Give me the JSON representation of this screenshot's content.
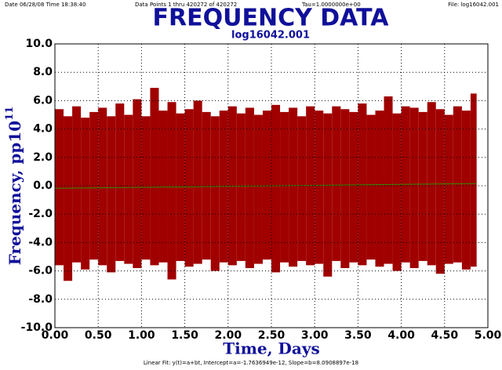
{
  "chart_data": {
    "type": "range",
    "header": {
      "date": "Date  06/28/08  Time  18:38:40",
      "points": "Data Points 1 thru 420272 of 420272",
      "tau": "Tau=1.0000000e+00",
      "file": "File: log16042.001"
    },
    "title": "FREQUENCY DATA",
    "subtitle": "log16042.001",
    "x_label": "Time, Days",
    "y_label": "Frequency, pp10",
    "y_label_exponent": "11",
    "footnote": "Linear Fit: y(t)=a+bt, Intercept=a=-1.7636949e-12, Slope=b=8.0908897e-18",
    "bins": [
      0.0,
      0.1,
      0.2,
      0.3,
      0.4,
      0.5,
      0.6,
      0.7,
      0.8,
      0.9,
      1.0,
      1.1,
      1.2,
      1.3,
      1.4,
      1.5,
      1.6,
      1.7,
      1.8,
      1.9,
      2.0,
      2.1,
      2.2,
      2.3,
      2.4,
      2.5,
      2.6,
      2.7,
      2.8,
      2.9,
      3.0,
      3.1,
      3.2,
      3.3,
      3.4,
      3.5,
      3.6,
      3.7,
      3.8,
      3.9,
      4.0,
      4.1,
      4.2,
      4.3,
      4.4,
      4.5,
      4.6,
      4.7,
      4.8,
      4.87
    ],
    "series": [
      {
        "name": "Frequency",
        "color": "#a00000",
        "high": [
          5.4,
          4.9,
          5.6,
          4.8,
          5.2,
          5.5,
          4.9,
          5.8,
          5.0,
          6.1,
          4.9,
          6.9,
          5.3,
          5.9,
          5.1,
          5.4,
          6.0,
          5.2,
          4.9,
          5.3,
          5.6,
          5.1,
          5.5,
          5.0,
          5.3,
          5.7,
          5.2,
          5.5,
          4.9,
          5.6,
          5.3,
          5.1,
          5.6,
          5.4,
          5.2,
          5.8,
          5.0,
          5.3,
          6.3,
          5.1,
          5.6,
          5.5,
          5.2,
          5.9,
          5.4,
          5.0,
          5.6,
          5.3,
          6.5
        ],
        "low": [
          -5.6,
          -6.7,
          -5.4,
          -5.9,
          -5.2,
          -5.6,
          -6.1,
          -5.3,
          -5.5,
          -5.8,
          -5.2,
          -5.6,
          -5.4,
          -6.6,
          -5.3,
          -5.7,
          -5.5,
          -5.2,
          -6.0,
          -5.4,
          -5.6,
          -5.3,
          -5.8,
          -5.5,
          -5.2,
          -6.1,
          -5.4,
          -5.7,
          -5.3,
          -5.6,
          -5.5,
          -6.4,
          -5.3,
          -5.8,
          -5.4,
          -5.6,
          -5.2,
          -5.7,
          -5.5,
          -6.0,
          -5.4,
          -5.8,
          -5.3,
          -5.6,
          -6.2,
          -5.5,
          -5.4,
          -5.9,
          -5.7
        ]
      },
      {
        "name": "Linear Fit",
        "color": "#2e8b00",
        "x": [
          0,
          4.87
        ],
        "values": [
          -0.18,
          0.16
        ]
      }
    ],
    "xlim": [
      0,
      5
    ],
    "ylim": [
      -10,
      10
    ],
    "xticks": [
      {
        "value": 0,
        "label": "0.00"
      },
      {
        "value": 0.5,
        "label": "0.50"
      },
      {
        "value": 1,
        "label": "1.00"
      },
      {
        "value": 1.5,
        "label": "1.50"
      },
      {
        "value": 2,
        "label": "2.00"
      },
      {
        "value": 2.5,
        "label": "2.50"
      },
      {
        "value": 3,
        "label": "3.00"
      },
      {
        "value": 3.5,
        "label": "3.50"
      },
      {
        "value": 4,
        "label": "4.00"
      },
      {
        "value": 4.5,
        "label": "4.50"
      },
      {
        "value": 5,
        "label": "5.00"
      }
    ],
    "yticks": [
      {
        "value": -10,
        "label": "-10.0"
      },
      {
        "value": -8,
        "label": "-8.0"
      },
      {
        "value": -6,
        "label": "-6.0"
      },
      {
        "value": -4,
        "label": "-4.0"
      },
      {
        "value": -2,
        "label": "-2.0"
      },
      {
        "value": 0,
        "label": "0.0"
      },
      {
        "value": 2,
        "label": "2.0"
      },
      {
        "value": 4,
        "label": "4.0"
      },
      {
        "value": 6,
        "label": "6.0"
      },
      {
        "value": 8,
        "label": "8.0"
      },
      {
        "value": 10,
        "label": "10.0"
      }
    ],
    "grid": true
  }
}
